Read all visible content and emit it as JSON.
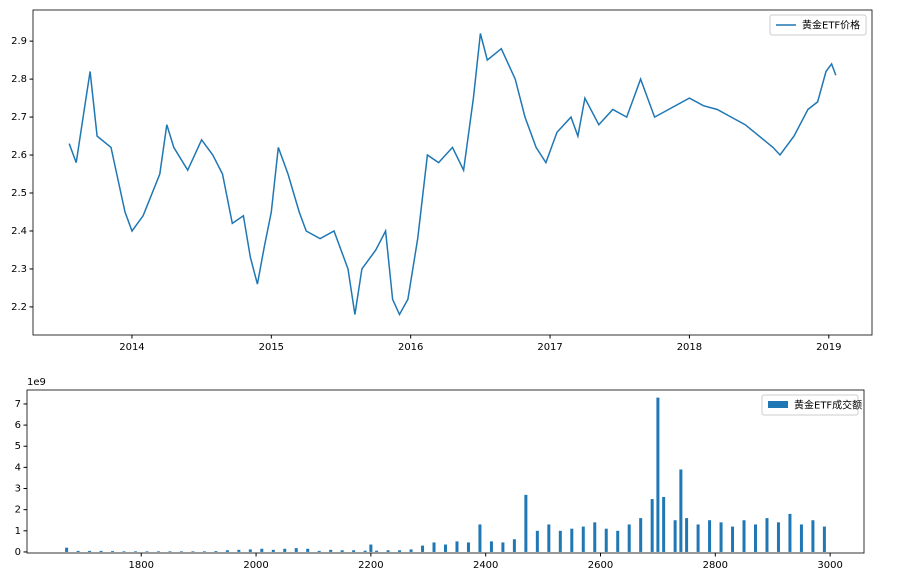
{
  "chart_data": [
    {
      "type": "line",
      "legend": "upper right",
      "xlim": [
        2013.29,
        2019.31
      ],
      "xticks": [
        2014,
        2015,
        2016,
        2017,
        2018,
        2019
      ],
      "ylim": [
        2.126,
        2.982
      ],
      "yticks": [
        2.2,
        2.3,
        2.4,
        2.5,
        2.6,
        2.7,
        2.8,
        2.9
      ],
      "x": [
        2013.55,
        2013.6,
        2013.67,
        2013.7,
        2013.75,
        2013.85,
        2013.95,
        2014.0,
        2014.08,
        2014.2,
        2014.25,
        2014.3,
        2014.4,
        2014.5,
        2014.58,
        2014.65,
        2014.72,
        2014.8,
        2014.85,
        2014.9,
        2014.95,
        2015.0,
        2015.05,
        2015.12,
        2015.2,
        2015.25,
        2015.35,
        2015.45,
        2015.55,
        2015.6,
        2015.65,
        2015.75,
        2015.82,
        2015.87,
        2015.92,
        2015.98,
        2016.05,
        2016.12,
        2016.2,
        2016.3,
        2016.38,
        2016.45,
        2016.5,
        2016.55,
        2016.65,
        2016.75,
        2016.82,
        2016.9,
        2016.97,
        2017.05,
        2017.15,
        2017.2,
        2017.25,
        2017.35,
        2017.45,
        2017.55,
        2017.65,
        2017.75,
        2017.85,
        2018.0,
        2018.1,
        2018.2,
        2018.3,
        2018.4,
        2018.5,
        2018.6,
        2018.65,
        2018.75,
        2018.85,
        2018.92,
        2018.98,
        2019.02,
        2019.05
      ],
      "series": [
        {
          "name": "黄金ETF价格",
          "color": "#1f77b4",
          "values": [
            2.63,
            2.58,
            2.75,
            2.82,
            2.65,
            2.62,
            2.45,
            2.4,
            2.44,
            2.55,
            2.68,
            2.62,
            2.56,
            2.64,
            2.6,
            2.55,
            2.42,
            2.44,
            2.33,
            2.26,
            2.36,
            2.45,
            2.62,
            2.55,
            2.45,
            2.4,
            2.38,
            2.4,
            2.3,
            2.18,
            2.3,
            2.35,
            2.4,
            2.22,
            2.18,
            2.22,
            2.38,
            2.6,
            2.58,
            2.62,
            2.56,
            2.75,
            2.92,
            2.85,
            2.88,
            2.8,
            2.7,
            2.62,
            2.58,
            2.66,
            2.7,
            2.65,
            2.75,
            2.68,
            2.72,
            2.7,
            2.8,
            2.7,
            2.72,
            2.75,
            2.73,
            2.72,
            2.7,
            2.68,
            2.65,
            2.62,
            2.6,
            2.65,
            2.72,
            2.74,
            2.82,
            2.84,
            2.81
          ]
        }
      ]
    },
    {
      "type": "bar",
      "legend": "upper right",
      "offset_label": "1e9",
      "xlim": [
        1601,
        3059
      ],
      "xticks": [
        1800,
        2000,
        2200,
        2400,
        2600,
        2800,
        3000
      ],
      "ylim": [
        -0.05,
        7.66
      ],
      "yticks": [
        0,
        1,
        2,
        3,
        4,
        5,
        6,
        7
      ],
      "x": [
        1670,
        1690,
        1710,
        1730,
        1750,
        1770,
        1790,
        1810,
        1830,
        1850,
        1870,
        1890,
        1910,
        1930,
        1950,
        1970,
        1990,
        2010,
        2030,
        2050,
        2070,
        2090,
        2110,
        2130,
        2150,
        2170,
        2190,
        2200,
        2210,
        2230,
        2250,
        2270,
        2290,
        2310,
        2330,
        2350,
        2370,
        2390,
        2410,
        2430,
        2450,
        2470,
        2490,
        2510,
        2530,
        2550,
        2570,
        2590,
        2610,
        2630,
        2650,
        2670,
        2690,
        2700,
        2710,
        2730,
        2740,
        2750,
        2770,
        2790,
        2810,
        2830,
        2850,
        2870,
        2890,
        2910,
        2930,
        2950,
        2970,
        2990
      ],
      "series": [
        {
          "name": "黄金ETF成交额",
          "color": "#1f77b4",
          "values": [
            0.2,
            0.05,
            0.05,
            0.05,
            0.04,
            0.03,
            0.03,
            0.03,
            0.03,
            0.03,
            0.03,
            0.03,
            0.03,
            0.04,
            0.08,
            0.1,
            0.12,
            0.15,
            0.1,
            0.15,
            0.18,
            0.15,
            0.05,
            0.1,
            0.08,
            0.08,
            0.06,
            0.35,
            0.06,
            0.08,
            0.08,
            0.12,
            0.3,
            0.45,
            0.35,
            0.5,
            0.45,
            1.3,
            0.5,
            0.45,
            0.6,
            2.7,
            1.0,
            1.3,
            1.0,
            1.1,
            1.2,
            1.4,
            1.1,
            1.0,
            1.3,
            1.6,
            2.5,
            7.3,
            2.6,
            1.5,
            3.9,
            1.6,
            1.3,
            1.5,
            1.4,
            1.2,
            1.5,
            1.3,
            1.6,
            1.4,
            1.8,
            1.3,
            1.5,
            1.2
          ]
        }
      ]
    }
  ]
}
